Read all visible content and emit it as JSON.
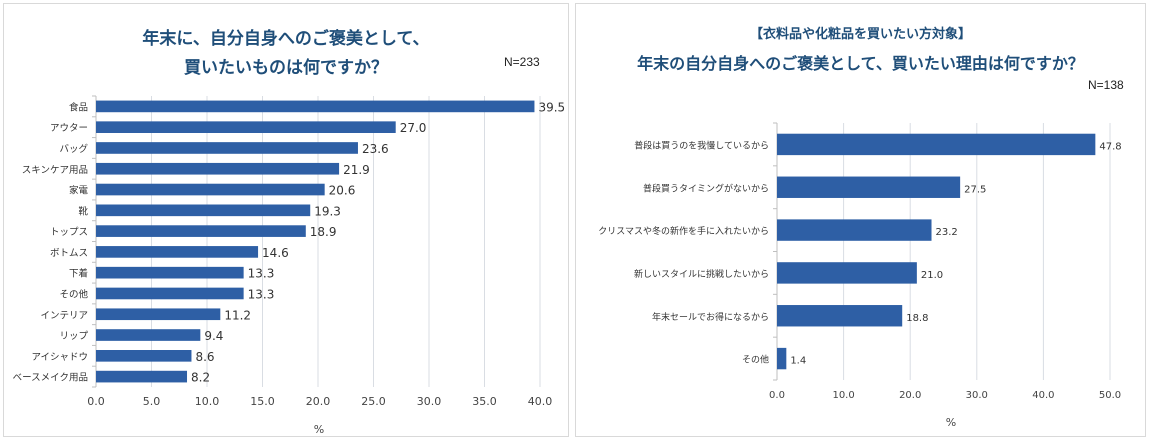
{
  "charts": {
    "left": {
      "title_line1": "年末に、自分自身へのご褒美として、",
      "title_line2": "買いたいものは何ですか？",
      "n": "N=233"
    },
    "right": {
      "title_line1": "【衣料品や化粧品を買いたい方対象】",
      "title_line2": "年末の自分自身へのご褒美として、買いたい理由は何ですか？",
      "n": "N=138"
    }
  },
  "chart_data": [
    {
      "type": "bar",
      "orientation": "horizontal",
      "title": "年末に、自分自身へのご褒美として、買いたいものは何ですか？",
      "n": "N=233",
      "categories": [
        "食品",
        "アウター",
        "バッグ",
        "スキンケア用品",
        "家電",
        "靴",
        "トップス",
        "ボトムス",
        "下着",
        "その他",
        "インテリア",
        "リップ",
        "アイシャドウ",
        "ベースメイク用品"
      ],
      "values": [
        39.5,
        27.0,
        23.6,
        21.9,
        20.6,
        19.3,
        18.9,
        14.6,
        13.3,
        13.3,
        11.2,
        9.4,
        8.6,
        8.2
      ],
      "value_labels": [
        "39.5",
        "27.0",
        "23.6",
        "21.9",
        "20.6",
        "19.3",
        "18.9",
        "14.6",
        "13.3",
        "13.3",
        "11.2",
        "9.4",
        "8.6",
        "8.2"
      ],
      "xlim": [
        0,
        40
      ],
      "ticks": [
        0,
        5,
        10,
        15,
        20,
        25,
        30,
        35,
        40
      ],
      "tick_labels": [
        "0.0",
        "5.0",
        "10.0",
        "15.0",
        "20.0",
        "25.0",
        "30.0",
        "35.0",
        "40.0"
      ],
      "xlabel": "%",
      "bar_color": "#2e5fa5",
      "grid": true
    },
    {
      "type": "bar",
      "orientation": "horizontal",
      "title": "【衣料品や化粧品を買いたい方対象】年末の自分自身へのご褒美として、買いたい理由は何ですか？",
      "n": "N=138",
      "categories": [
        "普段は買うのを我慢しているから",
        "普段買うタイミングがないから",
        "クリスマスや冬の新作を手に入れたいから",
        "新しいスタイルに挑戦したいから",
        "年末セールでお得になるから",
        "その他"
      ],
      "values": [
        47.8,
        27.5,
        23.2,
        21.0,
        18.8,
        1.4
      ],
      "value_labels": [
        "47.8",
        "27.5",
        "23.2",
        "21.0",
        "18.8",
        "1.4"
      ],
      "xlim": [
        0,
        50
      ],
      "ticks": [
        0,
        10,
        20,
        30,
        40,
        50
      ],
      "tick_labels": [
        "0.0",
        "10.0",
        "20.0",
        "30.0",
        "40.0",
        "50.0"
      ],
      "xlabel": "%",
      "bar_color": "#2e5fa5",
      "grid": true
    }
  ]
}
